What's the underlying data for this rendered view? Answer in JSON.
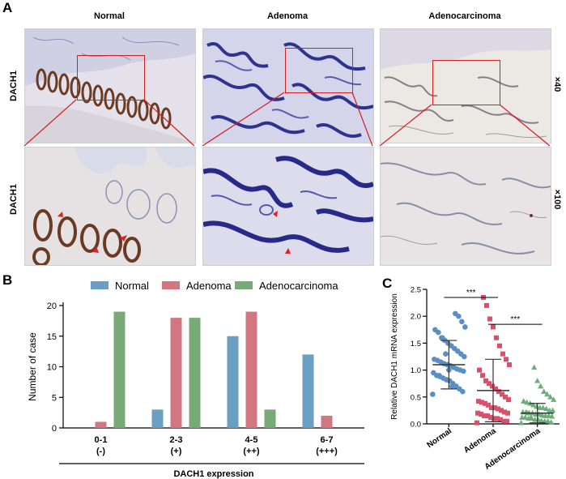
{
  "panel_a": {
    "letter": "A",
    "columns": [
      "Normal",
      "Adenoma",
      "Adenocarcinoma"
    ],
    "row_labels": [
      "DACH1",
      "DACH1"
    ],
    "magnifications": [
      "×40",
      "×100"
    ],
    "colors": {
      "box": "#d21f1f",
      "arrow": "#e02020",
      "stain_brown": "#6b3a22",
      "hematoxylin": "#3c3fa0"
    }
  },
  "panel_b": {
    "letter": "B",
    "chart_data": {
      "type": "bar",
      "categories": [
        "0-1",
        "2-3",
        "4-5",
        "6-7"
      ],
      "category_sublabels": [
        "(-)",
        "(+)",
        "(++)",
        "(+++)"
      ],
      "series": [
        {
          "name": "Normal",
          "color": "#6a9ec3",
          "values": [
            0,
            3,
            15,
            12
          ]
        },
        {
          "name": "Adenoma",
          "color": "#d27781",
          "values": [
            1,
            18,
            19,
            2
          ]
        },
        {
          "name": "Adenocarcinoma",
          "color": "#78aa78",
          "values": [
            19,
            18,
            3,
            0
          ]
        }
      ],
      "xlabel": "DACH1 expression",
      "ylabel": "Number of case",
      "ylim": [
        0,
        20
      ],
      "yticks": [
        "0",
        "5",
        "10",
        "15",
        "20"
      ],
      "legend_placement": "top"
    }
  },
  "panel_c": {
    "letter": "C",
    "chart_data": {
      "type": "scatter",
      "categories": [
        "Normal",
        "Adenoma",
        "Adenocarcinoma"
      ],
      "series": [
        {
          "name": "Normal",
          "color": "#5b8fc4",
          "marker": "circle",
          "mean": 1.1,
          "sd": 0.45,
          "values": [
            0.55,
            0.6,
            0.65,
            0.7,
            0.75,
            0.8,
            0.82,
            0.85,
            0.88,
            0.9,
            0.95,
            0.98,
            1.0,
            1.02,
            1.05,
            1.08,
            1.1,
            1.12,
            1.15,
            1.18,
            1.2,
            1.25,
            1.3,
            1.35,
            1.4,
            1.45,
            1.5,
            1.55,
            1.6,
            1.7,
            1.75,
            1.8,
            1.9,
            2.0,
            2.05,
            0.7,
            1.0,
            1.3,
            1.6,
            0.9
          ]
        },
        {
          "name": "Adenoma",
          "color": "#d9506b",
          "marker": "square",
          "mean": 0.62,
          "sd": 0.58,
          "values": [
            0.02,
            0.05,
            0.05,
            0.08,
            0.1,
            0.1,
            0.12,
            0.15,
            0.15,
            0.18,
            0.2,
            0.2,
            0.22,
            0.25,
            0.28,
            0.3,
            0.3,
            0.35,
            0.38,
            0.4,
            0.42,
            0.45,
            0.5,
            0.55,
            0.6,
            0.65,
            0.7,
            0.75,
            0.8,
            0.9,
            1.0,
            1.1,
            1.2,
            1.3,
            1.45,
            1.6,
            1.8,
            1.95,
            2.2,
            2.35
          ]
        },
        {
          "name": "Adenocarcinoma",
          "color": "#6fae7a",
          "marker": "triangle",
          "mean": 0.2,
          "sd": 0.18,
          "values": [
            0.02,
            0.03,
            0.05,
            0.05,
            0.06,
            0.08,
            0.08,
            0.1,
            0.1,
            0.12,
            0.12,
            0.14,
            0.15,
            0.15,
            0.16,
            0.18,
            0.18,
            0.2,
            0.2,
            0.22,
            0.22,
            0.25,
            0.25,
            0.28,
            0.3,
            0.3,
            0.32,
            0.35,
            0.38,
            0.4,
            0.42,
            0.45,
            0.5,
            0.55,
            0.6,
            0.7,
            0.8,
            1.05,
            0.12,
            0.2
          ]
        }
      ],
      "ylabel": "Relative DACH1 mRNA expression",
      "ylim": [
        0,
        2.5
      ],
      "yticks": [
        "0.0",
        "0.5",
        "1.0",
        "1.5",
        "2.0",
        "2.5"
      ],
      "significance": [
        {
          "from": "Normal",
          "to": "Adenoma",
          "label": "***"
        },
        {
          "from": "Adenoma",
          "to": "Adenocarcinoma",
          "label": "***"
        }
      ]
    }
  }
}
